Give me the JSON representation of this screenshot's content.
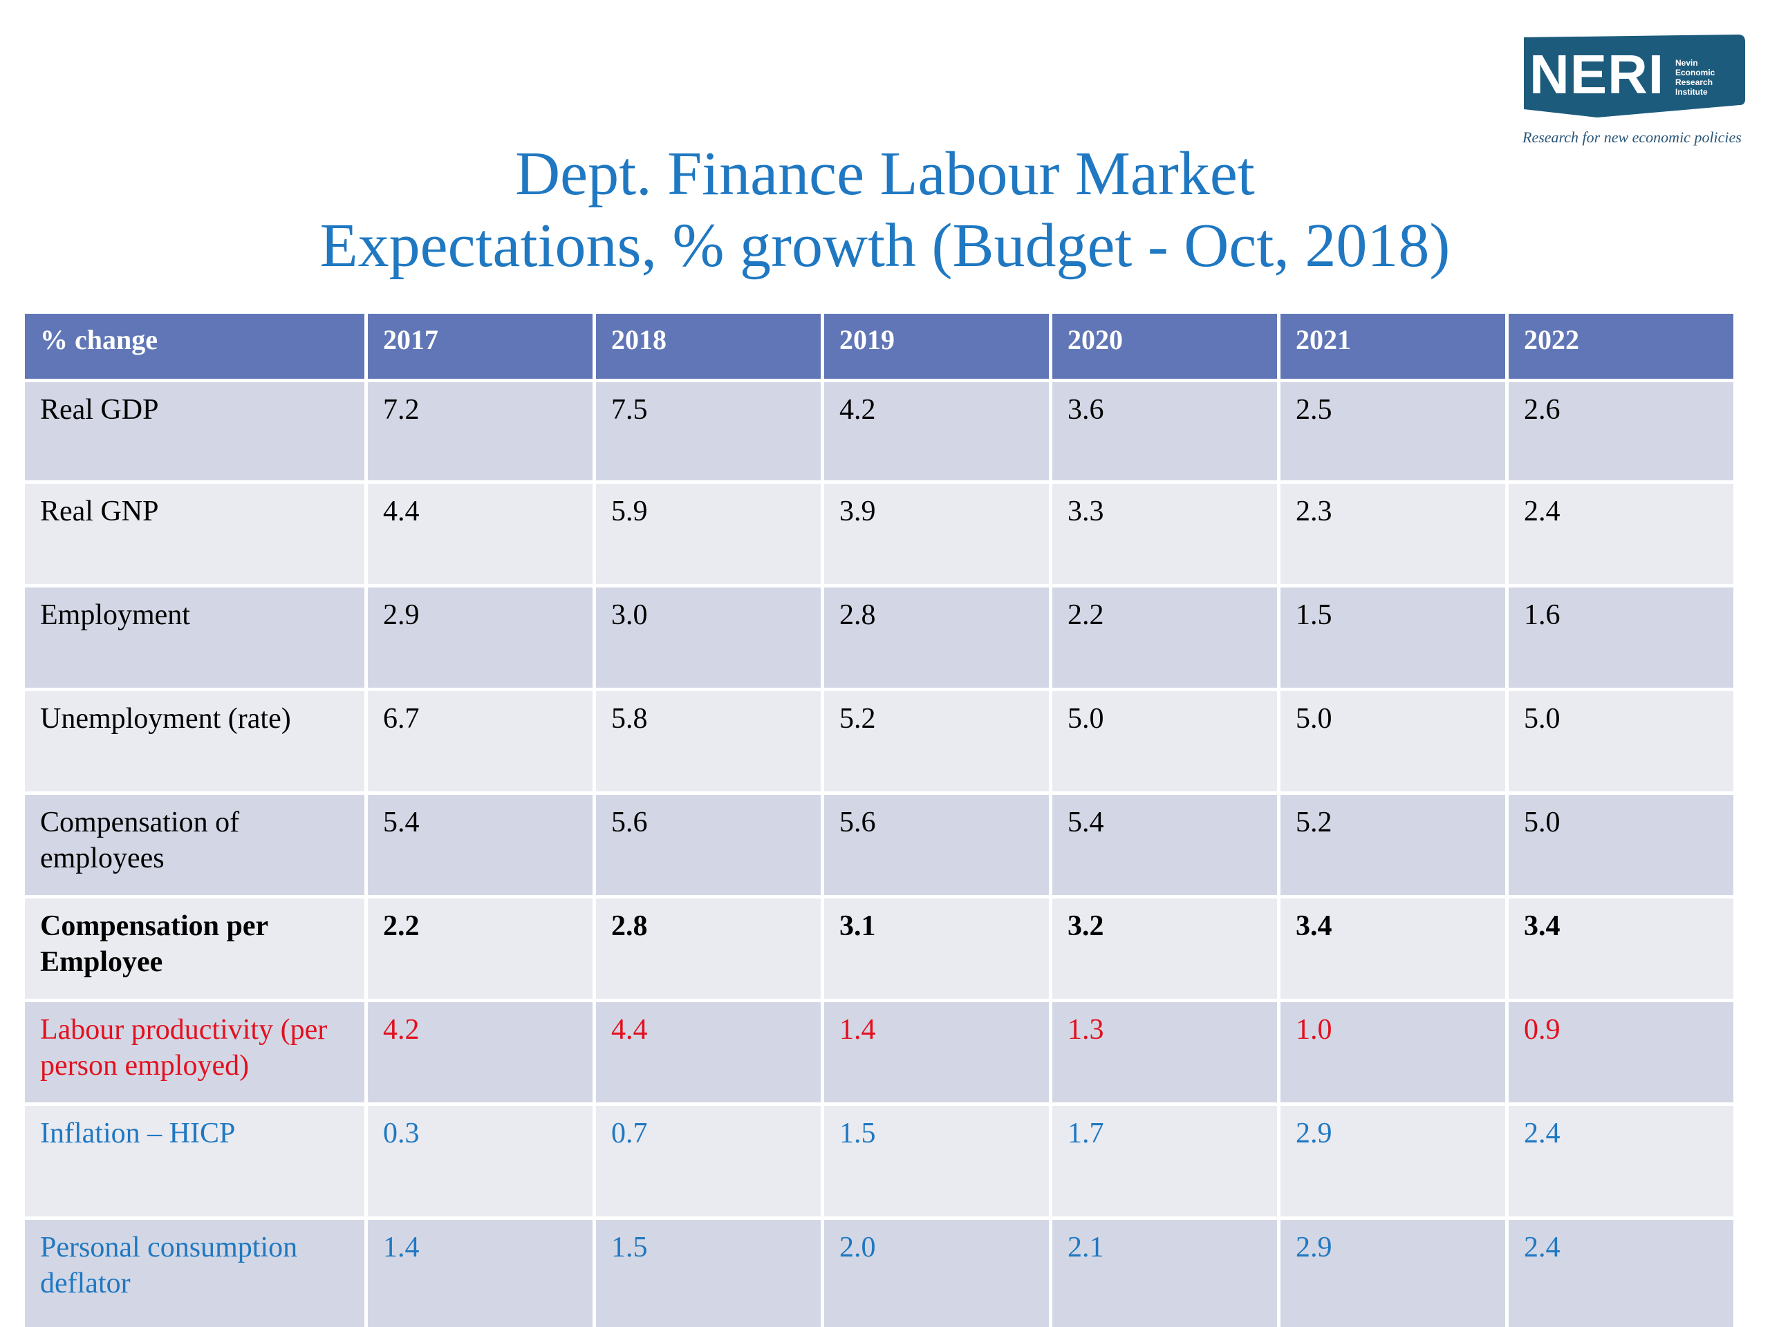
{
  "logo": {
    "letters": "NERI",
    "subtitle_lines": [
      "Nevin",
      "Economic",
      "Research",
      "Institute"
    ],
    "tagline": "Research for new economic policies",
    "color": "#1d5b7d"
  },
  "title": {
    "line1": "Dept. Finance Labour Market",
    "line2": "Expectations, % growth (Budget - Oct, 2018)",
    "color": "#1f78c1"
  },
  "table": {
    "header": [
      "% change",
      "2017",
      "2018",
      "2019",
      "2020",
      "2021",
      "2022"
    ],
    "header_color": "#6076b6",
    "rows": [
      {
        "label": "Real GDP",
        "values": [
          "7.2",
          "7.5",
          "4.2",
          "3.6",
          "2.5",
          "2.6"
        ]
      },
      {
        "label": "Real GNP",
        "values": [
          "4.4",
          "5.9",
          "3.9",
          "3.3",
          "2.3",
          "2.4"
        ]
      },
      {
        "label": "Employment",
        "values": [
          "2.9",
          "3.0",
          "2.8",
          "2.2",
          "1.5",
          "1.6"
        ]
      },
      {
        "label": "Unemployment (rate)",
        "values": [
          "6.7",
          "5.8",
          "5.2",
          "5.0",
          "5.0",
          "5.0"
        ]
      },
      {
        "label": "Compensation of employees",
        "values": [
          "5.4",
          "5.6",
          "5.6",
          "5.4",
          "5.2",
          "5.0"
        ]
      },
      {
        "label": "Compensation per Employee",
        "values": [
          "2.2",
          "2.8",
          "3.1",
          "3.2",
          "3.4",
          "3.4"
        ],
        "style": "bold"
      },
      {
        "label": "Labour productivity (per person employed)",
        "values": [
          "4.2",
          "4.4",
          "1.4",
          "1.3",
          "1.0",
          "0.9"
        ],
        "style": "red",
        "color": "#e3101e"
      },
      {
        "label": "Inflation – HICP",
        "values": [
          "0.3",
          "0.7",
          "1.5",
          "1.7",
          "2.9",
          "2.4"
        ],
        "style": "blue",
        "color": "#1f78c1"
      },
      {
        "label": "Personal consumption deflator",
        "values": [
          "1.4",
          "1.5",
          "2.0",
          "2.1",
          "2.9",
          "2.4"
        ],
        "style": "blue",
        "color": "#1f78c1"
      }
    ]
  }
}
